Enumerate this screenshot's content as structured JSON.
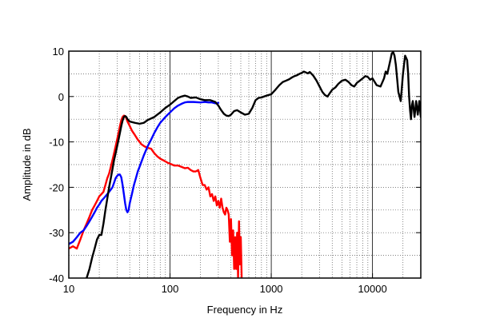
{
  "chart_data": {
    "type": "line",
    "xlabel": "Frequency in Hz",
    "ylabel": "Amplitude in dB",
    "x_scale": "log",
    "xlim": [
      10,
      30000
    ],
    "ylim": [
      -40,
      10
    ],
    "grid": true,
    "x_ticks": [
      {
        "value": 10,
        "label": "10"
      },
      {
        "value": 100,
        "label": "100"
      },
      {
        "value": 1000,
        "label": "1000"
      },
      {
        "value": 10000,
        "label": "10000"
      }
    ],
    "y_ticks": [
      {
        "value": 10,
        "label": "10"
      },
      {
        "value": 0,
        "label": "0"
      },
      {
        "value": -10,
        "label": "-10"
      },
      {
        "value": -20,
        "label": "-20"
      },
      {
        "value": -30,
        "label": "-30"
      },
      {
        "value": -40,
        "label": "-40"
      }
    ],
    "series": [
      {
        "color": "#ff0000",
        "points": [
          [
            10,
            -33.5
          ],
          [
            11,
            -33
          ],
          [
            12,
            -33.5
          ],
          [
            13,
            -31.5
          ],
          [
            14,
            -29.5
          ],
          [
            15,
            -28
          ],
          [
            16,
            -26.5
          ],
          [
            17,
            -25
          ],
          [
            18,
            -24
          ],
          [
            19,
            -23
          ],
          [
            20,
            -22
          ],
          [
            21,
            -21.5
          ],
          [
            22,
            -21
          ],
          [
            23,
            -19.5
          ],
          [
            24,
            -18
          ],
          [
            25,
            -17
          ],
          [
            26,
            -15.5
          ],
          [
            27,
            -14
          ],
          [
            28,
            -12.5
          ],
          [
            29,
            -11
          ],
          [
            30,
            -9.5
          ],
          [
            31,
            -8
          ],
          [
            32,
            -6.5
          ],
          [
            33,
            -5.2
          ],
          [
            34,
            -4.5
          ],
          [
            35,
            -4.2
          ],
          [
            36,
            -4.3
          ],
          [
            37,
            -4.8
          ],
          [
            38,
            -5.5
          ],
          [
            40,
            -6.5
          ],
          [
            42,
            -7.5
          ],
          [
            45,
            -8.5
          ],
          [
            48,
            -9.5
          ],
          [
            52,
            -10.5
          ],
          [
            56,
            -11
          ],
          [
            60,
            -11.3
          ],
          [
            65,
            -11.5
          ],
          [
            70,
            -12.5
          ],
          [
            75,
            -13.2
          ],
          [
            80,
            -13.7
          ],
          [
            85,
            -14
          ],
          [
            90,
            -14.3
          ],
          [
            95,
            -14.6
          ],
          [
            100,
            -14.8
          ],
          [
            110,
            -15.2
          ],
          [
            120,
            -15.2
          ],
          [
            130,
            -15.5
          ],
          [
            140,
            -15.8
          ],
          [
            150,
            -15.7
          ],
          [
            160,
            -16.2
          ],
          [
            170,
            -16.5
          ],
          [
            180,
            -16.5
          ],
          [
            190,
            -16.2
          ],
          [
            200,
            -18
          ],
          [
            210,
            -19.5
          ],
          [
            220,
            -19.5
          ],
          [
            230,
            -20.5
          ],
          [
            240,
            -20
          ],
          [
            250,
            -22
          ],
          [
            260,
            -21.5
          ],
          [
            270,
            -23
          ],
          [
            280,
            -22
          ],
          [
            290,
            -24
          ],
          [
            300,
            -23
          ],
          [
            310,
            -24.5
          ],
          [
            320,
            -22.5
          ],
          [
            330,
            -24.5
          ],
          [
            340,
            -25.5
          ],
          [
            350,
            -26
          ],
          [
            360,
            -24.5
          ],
          [
            370,
            -25
          ],
          [
            380,
            -26
          ],
          [
            390,
            -32
          ],
          [
            400,
            -27
          ],
          [
            410,
            -35
          ],
          [
            420,
            -29.5
          ],
          [
            430,
            -38
          ],
          [
            440,
            -31
          ],
          [
            450,
            -38
          ],
          [
            460,
            -30
          ],
          [
            470,
            -40
          ],
          [
            480,
            -27.5
          ],
          [
            490,
            -37
          ],
          [
            500,
            -31
          ],
          [
            510,
            -40
          ]
        ]
      },
      {
        "color": "#0000ff",
        "points": [
          [
            10,
            -32.5
          ],
          [
            11,
            -32
          ],
          [
            12,
            -31
          ],
          [
            13,
            -30
          ],
          [
            14,
            -29.5
          ],
          [
            15,
            -28.5
          ],
          [
            16,
            -27.5
          ],
          [
            17,
            -26.5
          ],
          [
            18,
            -25.5
          ],
          [
            19,
            -24.5
          ],
          [
            20,
            -23.8
          ],
          [
            21,
            -23
          ],
          [
            22,
            -22.5
          ],
          [
            23,
            -22
          ],
          [
            24,
            -21.5
          ],
          [
            25,
            -21
          ],
          [
            26,
            -20.5
          ],
          [
            27,
            -20
          ],
          [
            28,
            -19
          ],
          [
            29,
            -18
          ],
          [
            30,
            -17.5
          ],
          [
            31,
            -17.2
          ],
          [
            32,
            -17.2
          ],
          [
            33,
            -17.8
          ],
          [
            34,
            -19.5
          ],
          [
            35,
            -21.5
          ],
          [
            36,
            -23.5
          ],
          [
            37,
            -25
          ],
          [
            38,
            -25.5
          ],
          [
            39,
            -25
          ],
          [
            40,
            -23.5
          ],
          [
            42,
            -21.5
          ],
          [
            44,
            -19.5
          ],
          [
            46,
            -18
          ],
          [
            48,
            -16.5
          ],
          [
            50,
            -15.5
          ],
          [
            55,
            -13
          ],
          [
            60,
            -11
          ],
          [
            65,
            -9.5
          ],
          [
            70,
            -8
          ],
          [
            75,
            -6.8
          ],
          [
            80,
            -5.8
          ],
          [
            90,
            -4.5
          ],
          [
            100,
            -3.5
          ],
          [
            110,
            -2.6
          ],
          [
            120,
            -2
          ],
          [
            130,
            -1.6
          ],
          [
            140,
            -1.3
          ],
          [
            150,
            -1.2
          ],
          [
            170,
            -1.2
          ],
          [
            200,
            -1.3
          ],
          [
            220,
            -1.2
          ],
          [
            240,
            -1.3
          ],
          [
            260,
            -1.3
          ],
          [
            280,
            -1.5
          ],
          [
            300,
            -1.4
          ]
        ]
      },
      {
        "color": "#000000",
        "points": [
          [
            15,
            -40
          ],
          [
            16,
            -38
          ],
          [
            17,
            -35.5
          ],
          [
            18,
            -33.5
          ],
          [
            19,
            -31.5
          ],
          [
            20,
            -30.5
          ],
          [
            21,
            -30.5
          ],
          [
            22,
            -28
          ],
          [
            23,
            -25
          ],
          [
            24,
            -22.5
          ],
          [
            25,
            -20
          ],
          [
            26,
            -18
          ],
          [
            27,
            -16
          ],
          [
            28,
            -14
          ],
          [
            29,
            -12.5
          ],
          [
            30,
            -11
          ],
          [
            31,
            -9.5
          ],
          [
            32,
            -8
          ],
          [
            33,
            -6.5
          ],
          [
            34,
            -5.3
          ],
          [
            35,
            -4.5
          ],
          [
            36,
            -4.3
          ],
          [
            37,
            -4.5
          ],
          [
            38,
            -5
          ],
          [
            40,
            -5.5
          ],
          [
            45,
            -5.8
          ],
          [
            50,
            -6
          ],
          [
            55,
            -5.8
          ],
          [
            60,
            -5.2
          ],
          [
            70,
            -4.5
          ],
          [
            80,
            -3.5
          ],
          [
            90,
            -2.5
          ],
          [
            100,
            -1.8
          ],
          [
            110,
            -1
          ],
          [
            120,
            -0.3
          ],
          [
            130,
            0
          ],
          [
            140,
            0.2
          ],
          [
            150,
            0
          ],
          [
            160,
            -0.3
          ],
          [
            180,
            -0.2
          ],
          [
            200,
            -0.6
          ],
          [
            220,
            -0.8
          ],
          [
            250,
            -0.8
          ],
          [
            280,
            -1.2
          ],
          [
            300,
            -2
          ],
          [
            320,
            -3
          ],
          [
            340,
            -3.8
          ],
          [
            360,
            -4.2
          ],
          [
            380,
            -4.3
          ],
          [
            400,
            -4
          ],
          [
            430,
            -3.2
          ],
          [
            460,
            -3
          ],
          [
            500,
            -3.5
          ],
          [
            550,
            -4
          ],
          [
            600,
            -3.8
          ],
          [
            650,
            -2.5
          ],
          [
            700,
            -0.8
          ],
          [
            750,
            -0.3
          ],
          [
            800,
            -0.2
          ],
          [
            900,
            0.2
          ],
          [
            1000,
            0.5
          ],
          [
            1100,
            1.5
          ],
          [
            1200,
            2.5
          ],
          [
            1300,
            3.2
          ],
          [
            1400,
            3.5
          ],
          [
            1500,
            3.8
          ],
          [
            1600,
            4.2
          ],
          [
            1700,
            4.5
          ],
          [
            1800,
            4.7
          ],
          [
            1900,
            5
          ],
          [
            2000,
            5.2
          ],
          [
            2100,
            5.5
          ],
          [
            2200,
            5.3
          ],
          [
            2300,
            5.1
          ],
          [
            2400,
            5.4
          ],
          [
            2500,
            5
          ],
          [
            2600,
            4.6
          ],
          [
            2800,
            3.5
          ],
          [
            3000,
            2.2
          ],
          [
            3200,
            1
          ],
          [
            3400,
            0.3
          ],
          [
            3600,
            0
          ],
          [
            3800,
            0.8
          ],
          [
            4000,
            1.5
          ],
          [
            4300,
            2
          ],
          [
            4600,
            2.8
          ],
          [
            5000,
            3.5
          ],
          [
            5400,
            3.7
          ],
          [
            5800,
            3.2
          ],
          [
            6200,
            2.5
          ],
          [
            6600,
            2.2
          ],
          [
            7000,
            3
          ],
          [
            7500,
            3.5
          ],
          [
            8000,
            4
          ],
          [
            8500,
            4.5
          ],
          [
            9000,
            4.3
          ],
          [
            9500,
            3.7
          ],
          [
            10000,
            4
          ],
          [
            11000,
            2.5
          ],
          [
            12000,
            2.2
          ],
          [
            13000,
            4
          ],
          [
            13500,
            5.5
          ],
          [
            14000,
            5
          ],
          [
            14500,
            6.5
          ],
          [
            15000,
            8
          ],
          [
            15500,
            9.5
          ],
          [
            16000,
            9.8
          ],
          [
            16500,
            9
          ],
          [
            17000,
            7
          ],
          [
            17500,
            4
          ],
          [
            18000,
            1
          ],
          [
            18500,
            0
          ],
          [
            19000,
            -1
          ],
          [
            19500,
            2
          ],
          [
            20000,
            5
          ],
          [
            20500,
            7
          ],
          [
            21000,
            9
          ],
          [
            21500,
            8.5
          ],
          [
            22000,
            8
          ],
          [
            22500,
            5
          ],
          [
            23000,
            0
          ],
          [
            23500,
            -3
          ],
          [
            24000,
            -5
          ],
          [
            24500,
            -2
          ],
          [
            25000,
            -1
          ],
          [
            26000,
            -4.5
          ],
          [
            27000,
            -1
          ],
          [
            28000,
            -4
          ],
          [
            29000,
            -1
          ],
          [
            30000,
            -4.5
          ]
        ]
      }
    ]
  }
}
